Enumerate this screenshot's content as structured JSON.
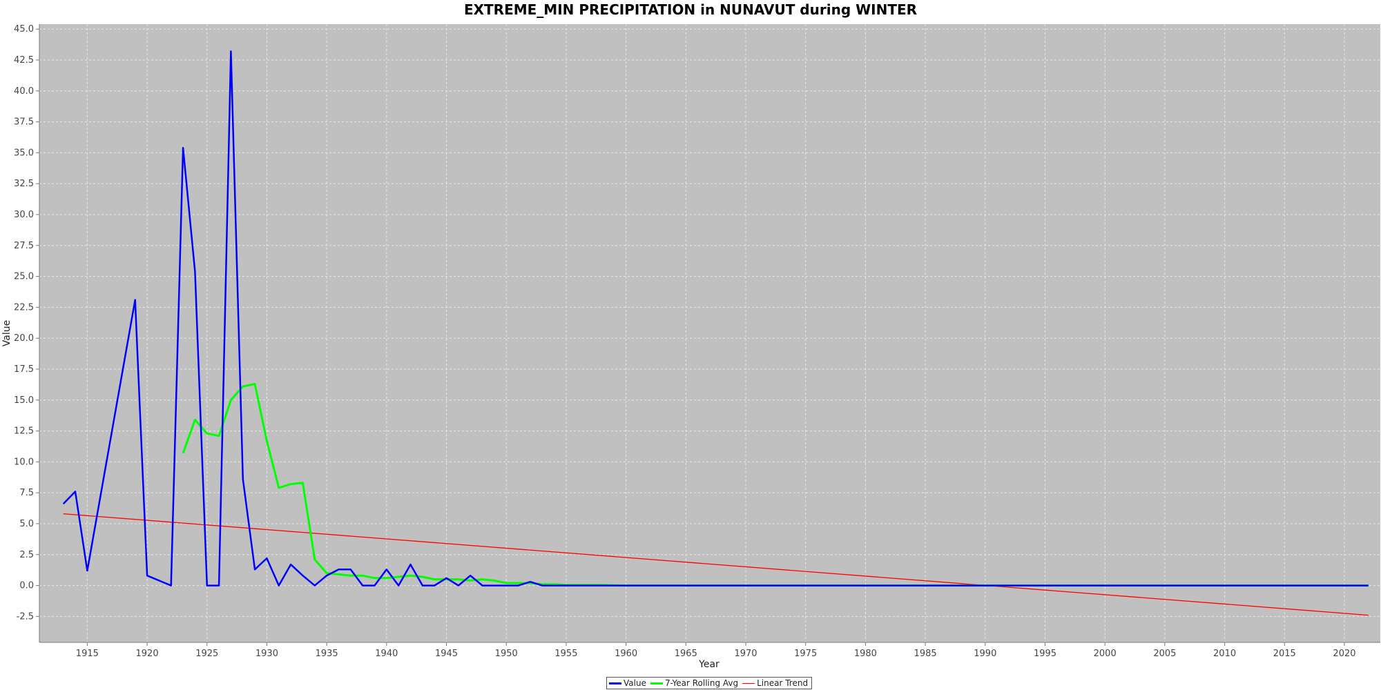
{
  "chart_data": {
    "type": "line",
    "title": "EXTREME_MIN PRECIPITATION in NUNAVUT during WINTER",
    "xlabel": "Year",
    "ylabel": "Value",
    "xlim": [
      1911,
      2023
    ],
    "ylim": [
      -4.6,
      45.4
    ],
    "x_ticks": [
      1915,
      1920,
      1925,
      1930,
      1935,
      1940,
      1945,
      1950,
      1955,
      1960,
      1965,
      1970,
      1975,
      1980,
      1985,
      1990,
      1995,
      2000,
      2005,
      2010,
      2015,
      2020
    ],
    "y_ticks": [
      -2.5,
      0.0,
      2.5,
      5.0,
      7.5,
      10.0,
      12.5,
      15.0,
      17.5,
      20.0,
      22.5,
      25.0,
      27.5,
      30.0,
      32.5,
      35.0,
      37.5,
      40.0,
      42.5,
      45.0
    ],
    "grid": true,
    "background": "#c0c0c0",
    "legend_position": "bottom-center",
    "series": [
      {
        "name": "Value",
        "color": "#0000ff",
        "x": [
          1913,
          1914,
          1915,
          1919,
          1920,
          1922,
          1923,
          1924,
          1925,
          1926,
          1927,
          1928,
          1929,
          1930,
          1931,
          1932,
          1933,
          1934,
          1935,
          1936,
          1937,
          1938,
          1939,
          1940,
          1941,
          1942,
          1943,
          1944,
          1945,
          1946,
          1947,
          1948,
          1949,
          1950,
          1951,
          1952,
          1953,
          2022
        ],
        "y": [
          6.6,
          7.6,
          1.2,
          23.1,
          0.8,
          0.0,
          35.4,
          25.4,
          0.0,
          0.0,
          43.2,
          8.6,
          1.3,
          2.2,
          0.0,
          1.7,
          0.8,
          0.0,
          0.8,
          1.3,
          1.3,
          0.0,
          0.0,
          1.3,
          0.0,
          1.7,
          0.0,
          0.0,
          0.6,
          0.0,
          0.8,
          0.0,
          0.0,
          0.0,
          0.0,
          0.3,
          0.0,
          0.0
        ]
      },
      {
        "name": "7-Year Rolling Avg",
        "color": "#00ff00",
        "x": [
          1923,
          1924,
          1925,
          1926,
          1927,
          1928,
          1929,
          1930,
          1931,
          1932,
          1933,
          1934,
          1935,
          1936,
          1937,
          1938,
          1939,
          1940,
          1941,
          1942,
          1943,
          1944,
          1945,
          1946,
          1947,
          1948,
          1949,
          1950,
          1951,
          1952,
          1953,
          1954,
          1955,
          1956,
          1957,
          1958,
          1959,
          1960,
          2022
        ],
        "y": [
          10.7,
          13.4,
          12.3,
          12.1,
          15.0,
          16.1,
          16.3,
          11.7,
          7.9,
          8.2,
          8.3,
          2.1,
          1.0,
          0.9,
          0.8,
          0.8,
          0.6,
          0.6,
          0.7,
          0.8,
          0.7,
          0.5,
          0.5,
          0.5,
          0.4,
          0.5,
          0.4,
          0.2,
          0.2,
          0.2,
          0.1,
          0.1,
          0.05,
          0.05,
          0.05,
          0.05,
          0.02,
          0.0,
          0.0
        ]
      },
      {
        "name": "Linear Trend",
        "color": "#ff0000",
        "x": [
          1913,
          2022
        ],
        "y": [
          5.8,
          -2.4
        ]
      }
    ]
  }
}
